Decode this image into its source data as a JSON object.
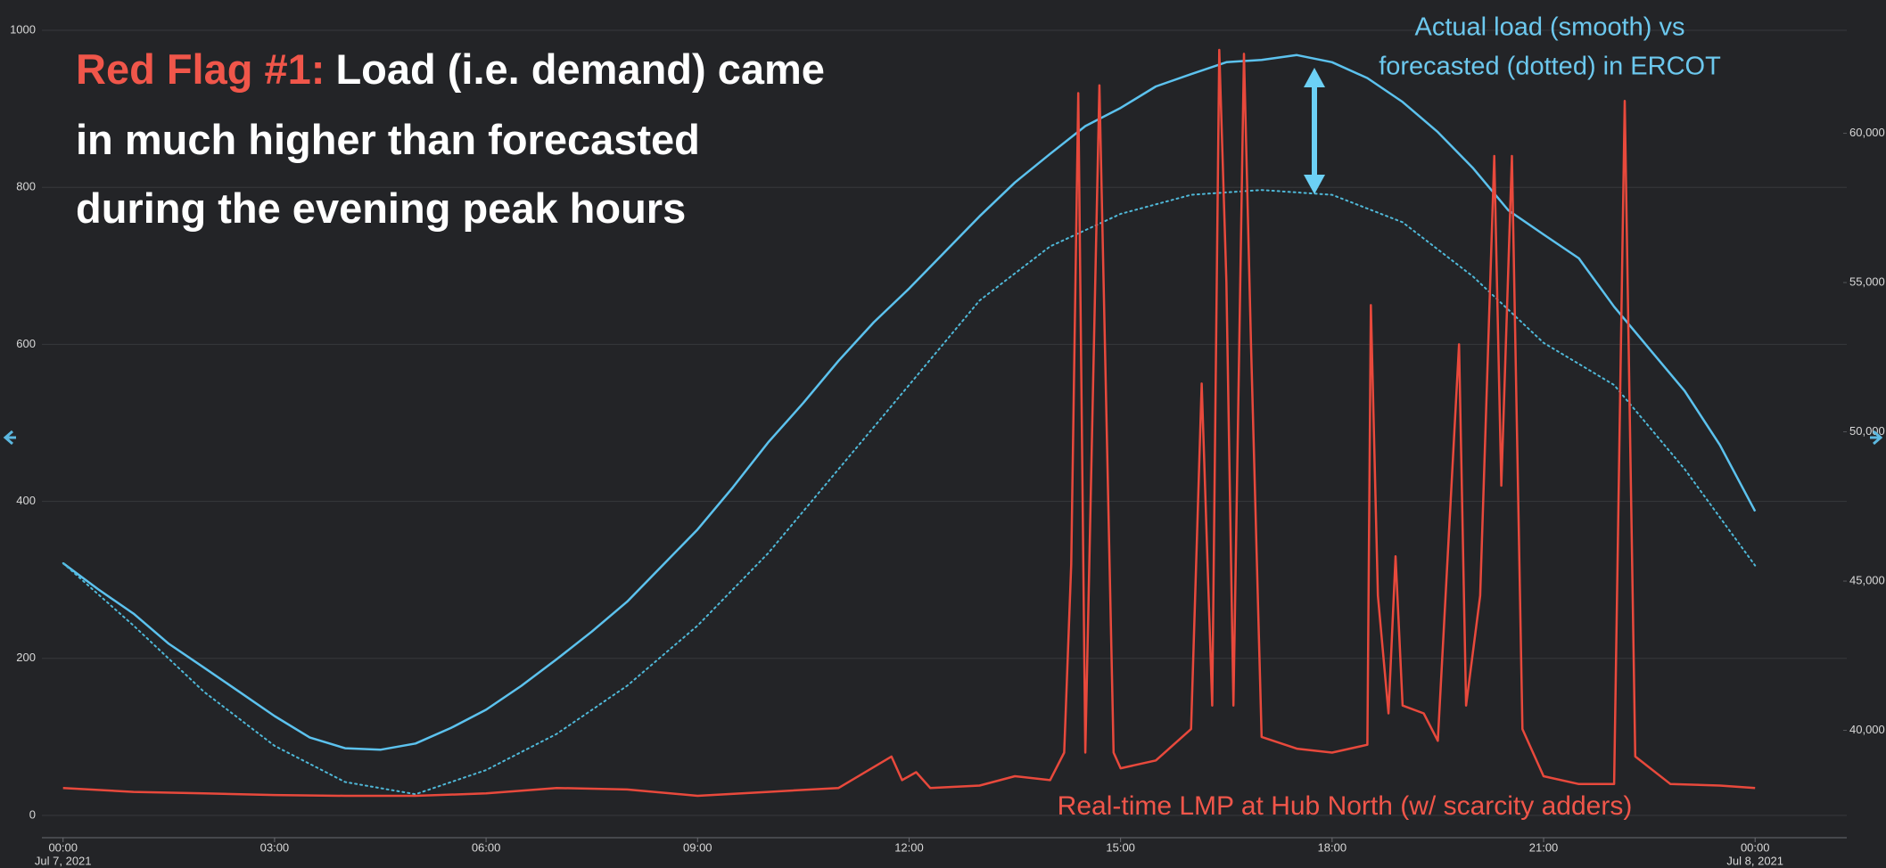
{
  "chart_data": {
    "type": "line",
    "title_highlight": "Red Flag #1:",
    "title_lines": [
      "Load (i.e. demand) came",
      "in much higher than forecasted",
      "during the evening peak hours"
    ],
    "annotations": [
      "Actual load (smooth) vs",
      "forecasted (dotted) in ERCOT",
      "Real-time LMP at Hub North (w/ scarcity adders)"
    ],
    "xlim": [
      -0.3,
      25.3
    ],
    "xticks": [
      {
        "value": 0,
        "label": "00:00"
      },
      {
        "value": 3,
        "label": "03:00"
      },
      {
        "value": 6,
        "label": "06:00"
      },
      {
        "value": 9,
        "label": "09:00"
      },
      {
        "value": 12,
        "label": "12:00"
      },
      {
        "value": 15,
        "label": "15:00"
      },
      {
        "value": 18,
        "label": "18:00"
      },
      {
        "value": 21,
        "label": "21:00"
      },
      {
        "value": 24,
        "label": "00:00"
      }
    ],
    "x_date_labels": [
      {
        "value": 0,
        "label": "Jul 7, 2021"
      },
      {
        "value": 24,
        "label": "Jul 8, 2021"
      }
    ],
    "ylim": [
      0,
      1000
    ],
    "yticks": [
      0,
      200,
      400,
      600,
      800,
      1000
    ],
    "y2lim": [
      37150,
      63450
    ],
    "y2ticks": [
      {
        "value": 40000,
        "label": "40,000"
      },
      {
        "value": 45000,
        "label": "45,000"
      },
      {
        "value": 50000,
        "label": "50,000"
      },
      {
        "value": 55000,
        "label": "55,000"
      },
      {
        "value": 60000,
        "label": "60,000"
      }
    ],
    "grid": true,
    "series": [
      {
        "color": "#5cc2ee",
        "style": "solid",
        "axis": "y2",
        "x": [
          0,
          0.5,
          1,
          1.5,
          2,
          2.5,
          3,
          3.5,
          4,
          4.5,
          5,
          5.5,
          6,
          6.5,
          7,
          7.5,
          8,
          8.5,
          9,
          9.5,
          10,
          10.5,
          11,
          11.5,
          12,
          12.5,
          13,
          13.5,
          14,
          14.5,
          15,
          15.5,
          16,
          16.5,
          17,
          17.5,
          18,
          18.5,
          19,
          19.5,
          20,
          20.5,
          21,
          21.5,
          22,
          22.5,
          23,
          23.5,
          24
        ],
        "values": [
          45600,
          44720,
          43910,
          42900,
          42100,
          41290,
          40480,
          39760,
          39400,
          39350,
          39560,
          40080,
          40690,
          41490,
          42380,
          43310,
          44310,
          45520,
          46730,
          48140,
          49640,
          50970,
          52380,
          53670,
          54800,
          56010,
          57220,
          58350,
          59310,
          60240,
          60850,
          61570,
          61980,
          62380,
          62460,
          62620,
          62380,
          61850,
          61050,
          60040,
          58830,
          57420,
          56610,
          55810,
          54190,
          52780,
          51370,
          49560,
          47340
        ]
      },
      {
        "color": "#4fb8d8",
        "style": "dotted",
        "axis": "y2",
        "x": [
          0,
          1,
          2,
          3,
          4,
          5,
          6,
          7,
          8,
          9,
          10,
          11,
          12,
          13,
          14,
          15,
          16,
          17,
          18,
          19,
          20,
          21,
          22,
          23,
          24
        ],
        "values": [
          45600,
          43510,
          41290,
          39480,
          38270,
          37860,
          38670,
          39880,
          41490,
          43510,
          45930,
          48750,
          51570,
          54400,
          56210,
          57300,
          57940,
          58100,
          57940,
          57020,
          55200,
          52980,
          51570,
          48750,
          45520
        ]
      },
      {
        "color": "#e8493c",
        "style": "solid",
        "axis": "y",
        "x": [
          0,
          1,
          2,
          3,
          4,
          5,
          6,
          7,
          8,
          9,
          10,
          11,
          11.75,
          11.9,
          12.1,
          12.3,
          13,
          13.5,
          14,
          14.2,
          14.3,
          14.4,
          14.5,
          14.7,
          14.9,
          15,
          15.5,
          16,
          16.15,
          16.3,
          16.4,
          16.5,
          16.6,
          16.75,
          16.85,
          17,
          17.5,
          18,
          18.5,
          18.55,
          18.65,
          18.8,
          18.9,
          19,
          19.3,
          19.5,
          19.8,
          19.9,
          20.1,
          20.3,
          20.4,
          20.55,
          20.7,
          21,
          21.5,
          22,
          22.15,
          22.3,
          22.8,
          23.5,
          24
        ],
        "values": [
          35,
          30,
          28,
          26,
          25,
          25,
          28,
          35,
          33,
          25,
          30,
          35,
          75,
          45,
          55,
          35,
          38,
          50,
          45,
          80,
          320,
          920,
          80,
          930,
          80,
          60,
          70,
          110,
          550,
          140,
          975,
          680,
          140,
          970,
          600,
          100,
          85,
          80,
          90,
          650,
          280,
          130,
          330,
          140,
          130,
          95,
          600,
          140,
          280,
          840,
          420,
          840,
          110,
          50,
          40,
          40,
          910,
          75,
          40,
          38,
          35
        ]
      }
    ]
  }
}
